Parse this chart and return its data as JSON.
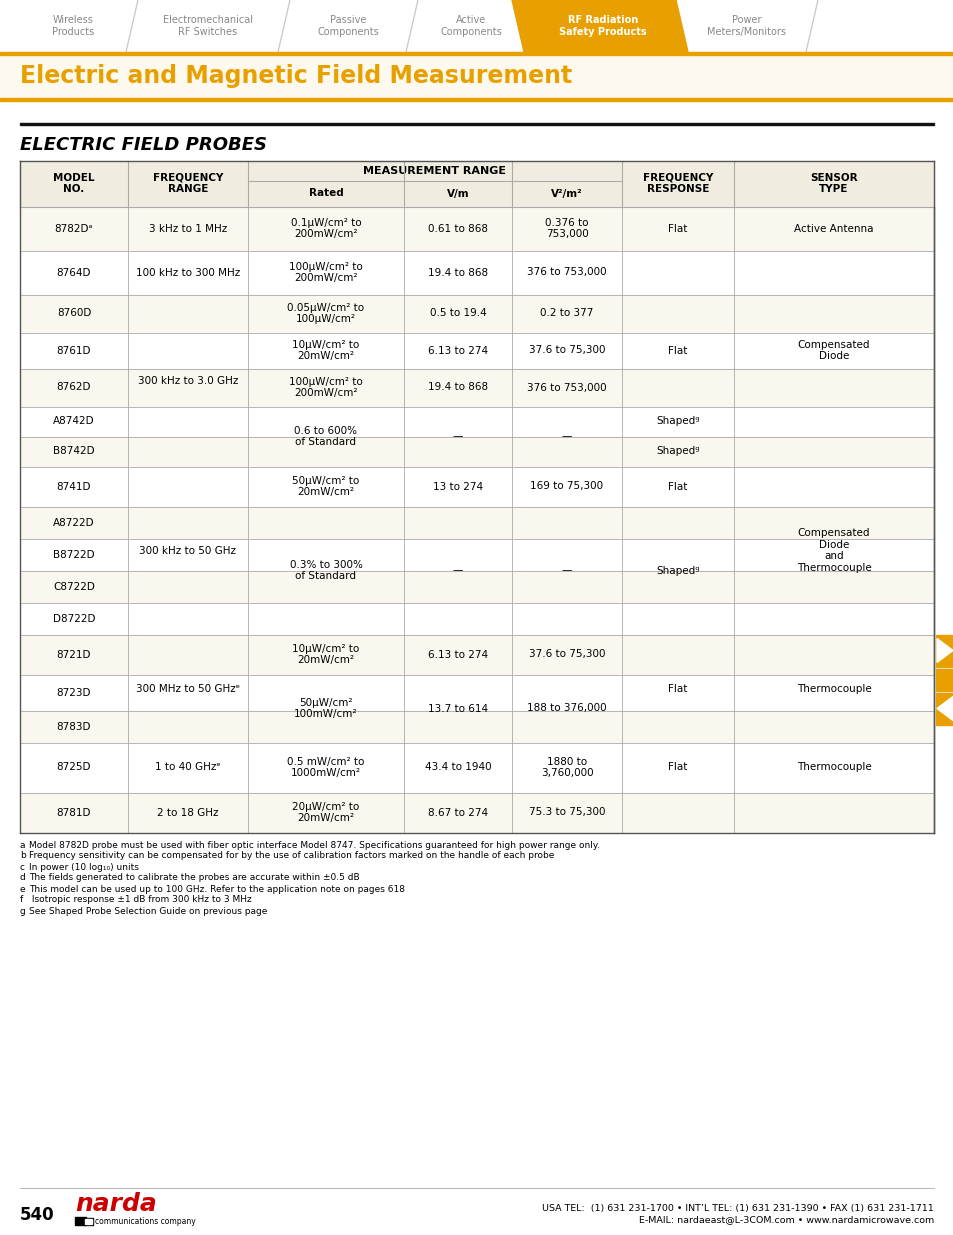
{
  "page_bg": "#ffffff",
  "gold_color": "#e8a000",
  "nav_bg": "#ffffff",
  "nav_tabs": [
    "Wireless\nProducts",
    "Electromechanical\nRF Switches",
    "Passive\nComponents",
    "Active\nComponents",
    "RF Radiation\nSafety Products",
    "Power\nMeters/Monitors"
  ],
  "nav_active_idx": 4,
  "title_text": "Electric and Magnetic Field Measurement",
  "title_color": "#e8a000",
  "title_bg": "#fef9ee",
  "section_title": "ELECTRIC FIELD PROBES",
  "table_header_bg": "#f0ede0",
  "table_alt_bg": "#faf7ee",
  "table_border": "#aaaaaa",
  "footer_num": "540",
  "footer_right_1": "USA TEL:  (1) 631 231-1700 • INT’L TEL: (1) 631 231-1390 • FAX (1) 631 231-1711",
  "footer_right_2": "E-MAIL: nardaeast@L-3COM.com • www.nardamicrowave.com",
  "footnotes": [
    [
      "a",
      "Model 8782D probe must be used with fiber optic interface Model 8747. Specifications guaranteed for high power range only."
    ],
    [
      "b",
      "Frequency sensitivity can be compensated for by the use of calibration factors marked on the handle of each probe"
    ],
    [
      "c",
      "In power (10 log₁₀) units"
    ],
    [
      "d",
      "The fields generated to calibrate the probes are accurate within ±0.5 dB"
    ],
    [
      "e",
      "This model can be used up to 100 GHz. Refer to the application note on pages 618"
    ],
    [
      "f",
      " Isotropic response ±1 dB from 300 kHz to 3 MHz"
    ],
    [
      "g",
      "See Shaped Probe Selection Guide on previous page"
    ]
  ]
}
